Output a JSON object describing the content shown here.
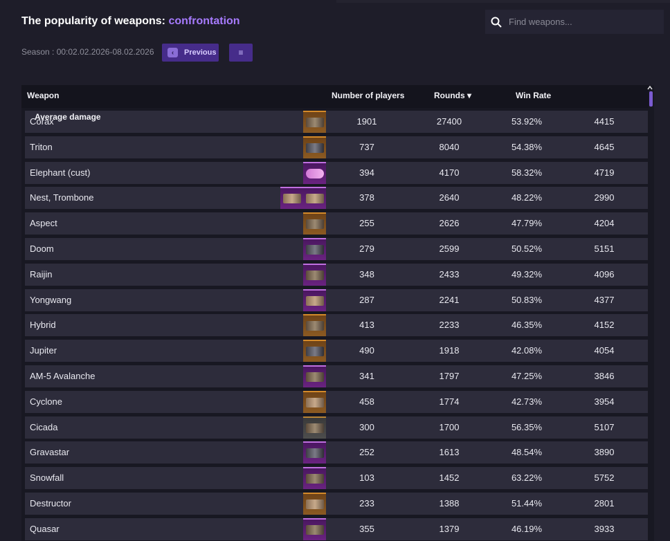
{
  "header": {
    "title_prefix": "The popularity of weapons:",
    "title_mode": "confrontation",
    "season": "Season : 00:02.02.2026-08.02.2026",
    "prev_label": "Previous",
    "menu_glyph": "≡",
    "prev_glyph": "‹"
  },
  "search": {
    "placeholder": "Find weapons..."
  },
  "table": {
    "columns": {
      "weapon": "Weapon",
      "players": "Number of players",
      "rounds": "Rounds ▾",
      "winrate": "Win Rate",
      "avgdmg": "Average damage"
    },
    "rows": [
      {
        "name": "Corax",
        "players": "1901",
        "rounds": "27400",
        "winrate": "53.92%",
        "damage": "4415",
        "thumb": "orange"
      },
      {
        "name": "Triton",
        "players": "737",
        "rounds": "8040",
        "winrate": "54.38%",
        "damage": "4645",
        "thumb": "orange"
      },
      {
        "name": "Elephant (cust)",
        "players": "394",
        "rounds": "4170",
        "winrate": "58.32%",
        "damage": "4719",
        "thumb": "purple"
      },
      {
        "name": "Nest, Trombone",
        "players": "378",
        "rounds": "2640",
        "winrate": "48.22%",
        "damage": "2990",
        "thumb": "purple"
      },
      {
        "name": "Aspect",
        "players": "255",
        "rounds": "2626",
        "winrate": "47.79%",
        "damage": "4204",
        "thumb": "orange"
      },
      {
        "name": "Doom",
        "players": "279",
        "rounds": "2599",
        "winrate": "50.52%",
        "damage": "5151",
        "thumb": "purple"
      },
      {
        "name": "Raijin",
        "players": "348",
        "rounds": "2433",
        "winrate": "49.32%",
        "damage": "4096",
        "thumb": "purple"
      },
      {
        "name": "Yongwang",
        "players": "287",
        "rounds": "2241",
        "winrate": "50.83%",
        "damage": "4377",
        "thumb": "purple"
      },
      {
        "name": "Hybrid",
        "players": "413",
        "rounds": "2233",
        "winrate": "46.35%",
        "damage": "4152",
        "thumb": "orange"
      },
      {
        "name": "Jupiter",
        "players": "490",
        "rounds": "1918",
        "winrate": "42.08%",
        "damage": "4054",
        "thumb": "orange"
      },
      {
        "name": "AM-5 Avalanche",
        "players": "341",
        "rounds": "1797",
        "winrate": "47.25%",
        "damage": "3846",
        "thumb": "purple"
      },
      {
        "name": "Cyclone",
        "players": "458",
        "rounds": "1774",
        "winrate": "42.73%",
        "damage": "3954",
        "thumb": "orange"
      },
      {
        "name": "Cicada",
        "players": "300",
        "rounds": "1700",
        "winrate": "56.35%",
        "damage": "5107",
        "thumb": "dark"
      },
      {
        "name": "Gravastar",
        "players": "252",
        "rounds": "1613",
        "winrate": "48.54%",
        "damage": "3890",
        "thumb": "purple"
      },
      {
        "name": "Snowfall",
        "players": "103",
        "rounds": "1452",
        "winrate": "63.22%",
        "damage": "5752",
        "thumb": "purple"
      },
      {
        "name": "Destructor",
        "players": "233",
        "rounds": "1388",
        "winrate": "51.44%",
        "damage": "2801",
        "thumb": "orange"
      },
      {
        "name": "Quasar",
        "players": "355",
        "rounds": "1379",
        "winrate": "46.19%",
        "damage": "3933",
        "thumb": "purple"
      }
    ]
  },
  "colors": {
    "background": "#1e1d29",
    "row": "#2d2c3b",
    "accent": "#a77bff",
    "button": "#462c8a"
  },
  "icons": {
    "search": "search-icon",
    "previous": "chevron-left-icon",
    "menu": "menu-icon",
    "scroll_up": "caret-up-icon"
  }
}
